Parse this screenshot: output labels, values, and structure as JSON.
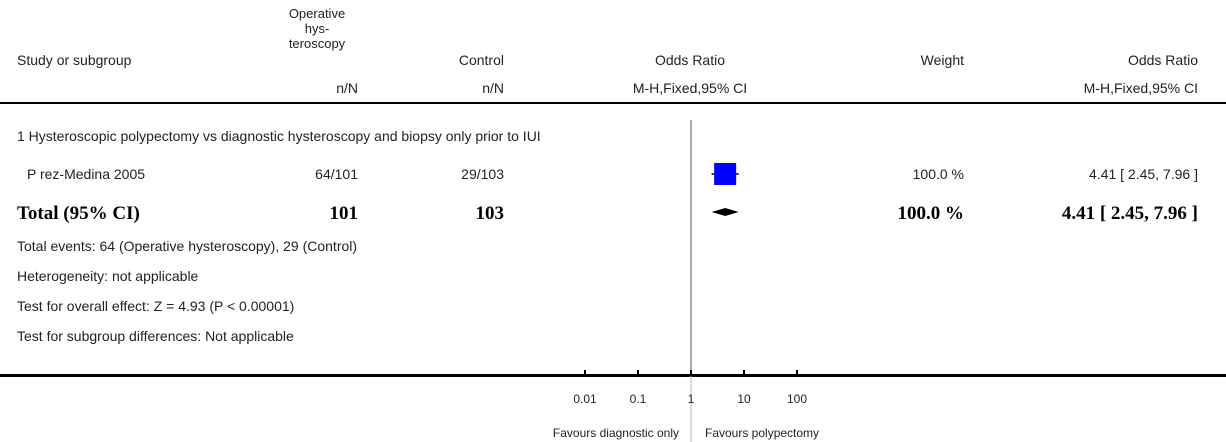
{
  "header": {
    "study_col": "Study or subgroup",
    "treatment_col_lines": [
      "Operative",
      "hys-",
      "teroscopy"
    ],
    "control_col": "Control",
    "effect_col": "Odds Ratio",
    "weight_col": "Weight",
    "effect_col_right": "Odds Ratio",
    "treatment_sub": "n/N",
    "control_sub": "n/N",
    "effect_sub": "M-H,Fixed,95% CI",
    "effect_sub_right": "M-H,Fixed,95% CI"
  },
  "subgroup": {
    "title": "1 Hysteroscopic polypectomy vs diagnostic hysteroscopy and biopsy only prior to IUI"
  },
  "studies": [
    {
      "name": "P rez-Medina 2005",
      "treatment": "64/101",
      "control": "29/103",
      "weight": "100.0 %",
      "ci_text": "4.41 [ 2.45, 7.96 ]"
    }
  ],
  "total": {
    "label": "Total (95% CI)",
    "treatment": "101",
    "control": "103",
    "weight": "100.0 %",
    "ci_text": "4.41 [ 2.45, 7.96 ]"
  },
  "footnotes": [
    "Total events: 64 (Operative hysteroscopy), 29 (Control)",
    "Heterogeneity: not applicable",
    "Test for overall effect: Z = 4.93 (P < 0.00001)",
    "Test for subgroup differences: Not applicable"
  ],
  "axis": {
    "tick_labels": [
      "0.01",
      "0.1",
      "1",
      "10",
      "100"
    ],
    "favours_left": "Favours diagnostic only",
    "favours_right": "Favours polypectomy"
  },
  "colors": {
    "study_marker": "#0000ff",
    "summary_marker": "#000000"
  },
  "chart_data": {
    "type": "forest",
    "scale": "log",
    "xlim": [
      0.01,
      100
    ],
    "ticks": [
      0.01,
      0.1,
      1,
      10,
      100
    ],
    "null_line": 1,
    "studies": [
      {
        "name": "P rez-Medina 2005",
        "or": 4.41,
        "ci_low": 2.45,
        "ci_high": 7.96,
        "weight": 100.0
      }
    ],
    "summary": {
      "or": 4.41,
      "ci_low": 2.45,
      "ci_high": 7.96
    }
  }
}
